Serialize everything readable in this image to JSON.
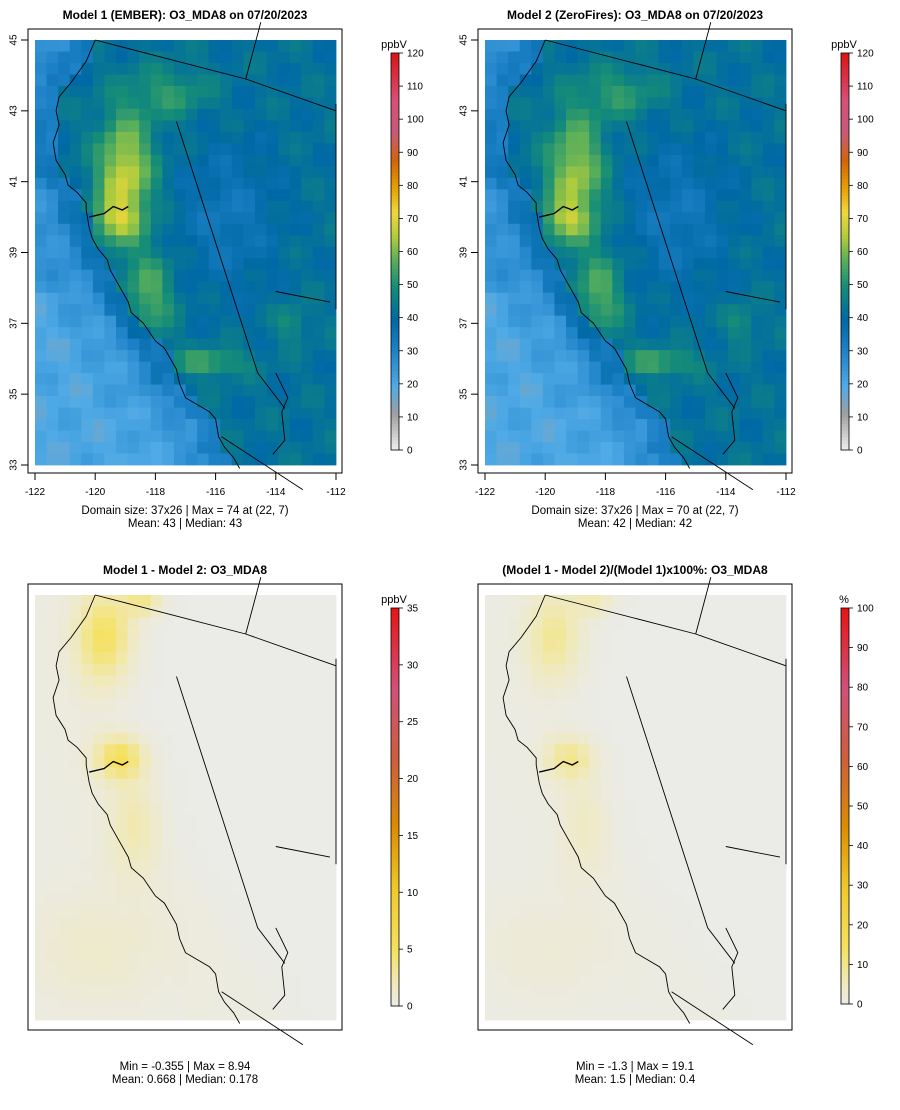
{
  "chart_data": [
    {
      "type": "heatmap",
      "title": "Model 1 (EMBER): O3_MDA8 on 07/20/2023",
      "xlim": [
        -122,
        -112
      ],
      "ylim": [
        33,
        45
      ],
      "x_ticks": [
        "-122",
        "-120",
        "-118",
        "-116",
        "-114",
        "-112"
      ],
      "y_ticks": [
        "33",
        "35",
        "37",
        "39",
        "41",
        "43",
        "45"
      ],
      "colorbar": {
        "unit": "ppbV",
        "range": [
          0,
          120
        ],
        "ticks": [
          "0",
          "10",
          "20",
          "30",
          "40",
          "50",
          "60",
          "70",
          "80",
          "90",
          "100",
          "110",
          "120"
        ]
      },
      "grid": [
        37,
        26
      ],
      "max_value": 74,
      "max_cell": [
        22,
        7
      ],
      "stats_line1": "Domain size: 37x26 | Max = 74 at (22, 7)",
      "stats_line2": "Mean: 43 |  Median: 43"
    },
    {
      "type": "heatmap",
      "title": "Model 2 (ZeroFires): O3_MDA8 on 07/20/2023",
      "xlim": [
        -122,
        -112
      ],
      "ylim": [
        33,
        45
      ],
      "x_ticks": [
        "-122",
        "-120",
        "-118",
        "-116",
        "-114",
        "-112"
      ],
      "y_ticks": [
        "33",
        "35",
        "37",
        "39",
        "41",
        "43",
        "45"
      ],
      "colorbar": {
        "unit": "ppbV",
        "range": [
          0,
          120
        ],
        "ticks": [
          "0",
          "10",
          "20",
          "30",
          "40",
          "50",
          "60",
          "70",
          "80",
          "90",
          "100",
          "110",
          "120"
        ]
      },
      "grid": [
        37,
        26
      ],
      "max_value": 70,
      "max_cell": [
        22,
        7
      ],
      "stats_line1": "Domain size: 37x26 | Max = 70 at (22, 7)",
      "stats_line2": "Mean: 42 |  Median: 42"
    },
    {
      "type": "heatmap",
      "title": "Model 1 - Model 2: O3_MDA8",
      "colorbar": {
        "unit": "ppbV",
        "range": [
          0,
          35
        ],
        "ticks": [
          "0",
          "5",
          "10",
          "15",
          "20",
          "25",
          "30",
          "35"
        ]
      },
      "min_value": -0.355,
      "max_value": 8.94,
      "mean": 0.668,
      "median": 0.178,
      "stats_line1": "Min = -0.355 | Max = 8.94",
      "stats_line2": "Mean: 0.668 |  Median: 0.178"
    },
    {
      "type": "heatmap",
      "title": "(Model 1 - Model 2)/(Model 1)x100%: O3_MDA8",
      "colorbar": {
        "unit": "%",
        "range": [
          0,
          100
        ],
        "ticks": [
          "0",
          "10",
          "20",
          "30",
          "40",
          "50",
          "60",
          "70",
          "80",
          "90",
          "100"
        ]
      },
      "min_value": -1.3,
      "max_value": 19.1,
      "mean": 1.5,
      "median": 0.4,
      "stats_line1": "Min = -1.3 | Max = 19.1",
      "stats_line2": "Mean: 1.5 |  Median: 0.4"
    }
  ]
}
